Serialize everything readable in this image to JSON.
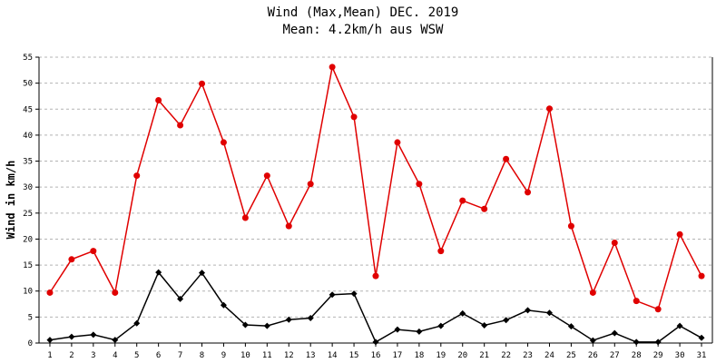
{
  "chart_data": {
    "type": "line",
    "title": "Wind (Max,Mean) DEC. 2019",
    "subtitle": "Mean: 4.2km/h aus WSW",
    "xlabel": "",
    "ylabel": "Wind in km/h",
    "ylim": [
      0,
      55
    ],
    "yticks": [
      0,
      5,
      10,
      15,
      20,
      25,
      30,
      35,
      40,
      45,
      50,
      55
    ],
    "grid": true,
    "x": [
      1,
      2,
      3,
      4,
      5,
      6,
      7,
      8,
      9,
      10,
      11,
      12,
      13,
      14,
      15,
      16,
      17,
      18,
      19,
      20,
      21,
      22,
      23,
      24,
      25,
      26,
      27,
      28,
      29,
      30,
      31
    ],
    "series": [
      {
        "color": "#e00000",
        "marker": "circle",
        "values": [
          9.7,
          16.1,
          17.7,
          9.7,
          32.2,
          46.7,
          41.9,
          49.9,
          38.6,
          24.1,
          32.2,
          22.5,
          30.6,
          53.1,
          43.5,
          12.9,
          38.6,
          30.6,
          17.7,
          27.4,
          25.8,
          35.4,
          29.0,
          45.1,
          22.5,
          9.7,
          19.3,
          8.1,
          6.5,
          20.9,
          12.9
        ]
      },
      {
        "color": "#000000",
        "marker": "diamond",
        "values": [
          0.6,
          1.2,
          1.6,
          0.6,
          3.8,
          13.6,
          8.5,
          13.5,
          7.3,
          3.5,
          3.3,
          4.5,
          4.8,
          9.3,
          9.5,
          0.2,
          2.6,
          2.2,
          3.3,
          5.7,
          3.4,
          4.4,
          6.3,
          5.8,
          3.2,
          0.5,
          1.9,
          0.2,
          0.2,
          3.3,
          1.0
        ]
      }
    ]
  }
}
